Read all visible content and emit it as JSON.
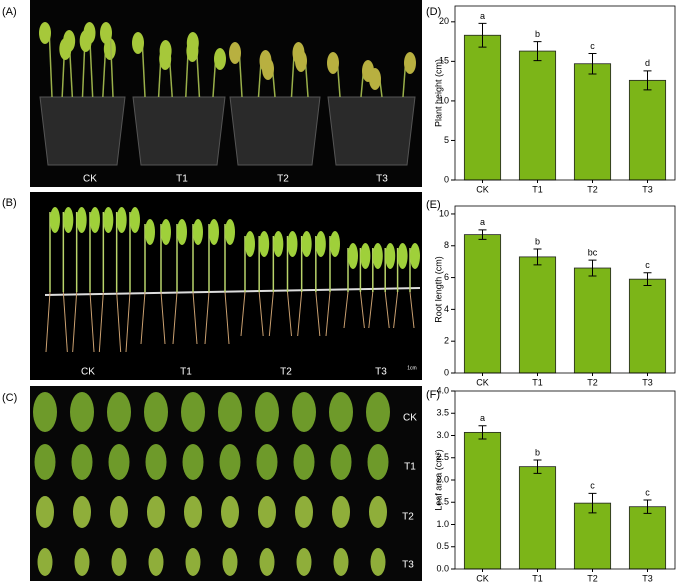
{
  "photos": [
    {
      "panel": "(A)",
      "labels": [
        "CK",
        "T1",
        "T2",
        "T3"
      ]
    },
    {
      "panel": "(B)",
      "labels": [
        "CK",
        "T1",
        "T2",
        "T3"
      ],
      "scale": "1cm"
    },
    {
      "panel": "(C)",
      "labels": [
        "CK",
        "T1",
        "T2",
        "T3"
      ]
    }
  ],
  "chart_data": [
    {
      "type": "bar",
      "panel": "(D)",
      "y_label": "Plant height (cm)",
      "categories": [
        "CK",
        "T1",
        "T2",
        "T3"
      ],
      "values": [
        18.3,
        16.3,
        14.7,
        12.6
      ],
      "errors": [
        1.5,
        1.2,
        1.3,
        1.2
      ],
      "letters": [
        "a",
        "b",
        "c",
        "d"
      ],
      "color": "#7cb518",
      "ylim": [
        0,
        22
      ],
      "yticks": [
        0,
        5,
        10,
        15,
        20
      ]
    },
    {
      "type": "bar",
      "panel": "(E)",
      "y_label": "Root length (cm)",
      "categories": [
        "CK",
        "T1",
        "T2",
        "T3"
      ],
      "values": [
        8.7,
        7.3,
        6.6,
        5.9
      ],
      "errors": [
        0.3,
        0.5,
        0.5,
        0.4
      ],
      "letters": [
        "a",
        "b",
        "bc",
        "c"
      ],
      "color": "#7cb518",
      "ylim": [
        0,
        10.5
      ],
      "yticks": [
        0,
        2,
        4,
        6,
        8,
        10
      ]
    },
    {
      "type": "bar",
      "panel": "(F)",
      "y_label": "Leaf area (cm²)",
      "categories": [
        "CK",
        "T1",
        "T2",
        "T3"
      ],
      "values": [
        3.07,
        2.3,
        1.48,
        1.4
      ],
      "errors": [
        0.15,
        0.15,
        0.22,
        0.15
      ],
      "letters": [
        "a",
        "b",
        "c",
        "c"
      ],
      "color": "#7cb518",
      "ylim": [
        0,
        4
      ],
      "yticks": [
        {
          "value": 0,
          "label": "0.0"
        },
        0.5,
        {
          "value": 1,
          "label": "1.0"
        },
        1.5,
        {
          "value": 2,
          "label": "2.0"
        },
        2.5,
        {
          "value": 3,
          "label": "3.0"
        },
        3.5,
        {
          "value": 4,
          "label": "4.0"
        }
      ]
    }
  ]
}
